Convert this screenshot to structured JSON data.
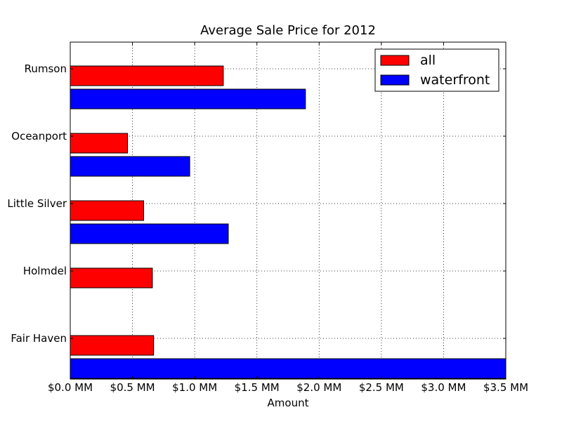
{
  "chart_data": {
    "type": "bar",
    "orientation": "horizontal",
    "title": "Average Sale Price for 2012",
    "xlabel": "Amount",
    "ylabel": "",
    "xlim": [
      0,
      3.5
    ],
    "x_unit": "MM",
    "categories": [
      "Rumson",
      "Oceanport",
      "Little Silver",
      "Holmdel",
      "Fair Haven"
    ],
    "series": [
      {
        "name": "all",
        "color": "#ff0000",
        "values": [
          1.23,
          0.46,
          0.59,
          0.66,
          0.67
        ]
      },
      {
        "name": "waterfront",
        "color": "#0000ff",
        "values": [
          1.89,
          0.96,
          1.27,
          0.0,
          3.5
        ]
      }
    ],
    "x_ticks": [
      "$0.0 MM",
      "$0.5 MM",
      "$1.0 MM",
      "$1.5 MM",
      "$2.0 MM",
      "$2.5 MM",
      "$3.0 MM",
      "$3.5 MM"
    ],
    "grid": true,
    "legend_position": "top-right"
  }
}
